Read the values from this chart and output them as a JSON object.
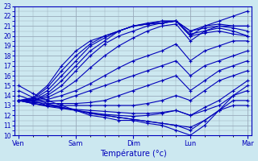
{
  "xlabel": "Température (°c)",
  "background_color": "#cce8f0",
  "line_color": "#0000bb",
  "grid_color": "#99aabb",
  "ylim": [
    10,
    23
  ],
  "yticks": [
    10,
    11,
    12,
    13,
    14,
    15,
    16,
    17,
    18,
    19,
    20,
    21,
    22,
    23
  ],
  "day_labels": [
    "Ven",
    "Sam",
    "Dim",
    "Lun",
    "Mar"
  ],
  "day_positions": [
    0,
    4,
    8,
    12,
    16
  ],
  "forecasts": [
    [
      15.0,
      14.2,
      13.5,
      13.0,
      12.5,
      12.0,
      11.8,
      11.5,
      11.5,
      11.2,
      11.0,
      10.5,
      10.0,
      11.0,
      12.5,
      14.0,
      15.0
    ],
    [
      14.5,
      13.8,
      13.2,
      12.8,
      12.5,
      12.2,
      12.0,
      11.8,
      11.6,
      11.4,
      11.2,
      11.0,
      10.5,
      11.5,
      12.5,
      13.5,
      13.5
    ],
    [
      14.0,
      13.5,
      13.0,
      12.8,
      12.5,
      12.2,
      12.0,
      11.8,
      11.6,
      11.4,
      11.2,
      11.0,
      10.8,
      11.5,
      12.5,
      13.0,
      13.0
    ],
    [
      13.5,
      13.2,
      12.9,
      12.7,
      12.5,
      12.3,
      12.1,
      12.0,
      11.9,
      12.0,
      12.2,
      12.5,
      12.0,
      12.5,
      13.0,
      14.0,
      14.5
    ],
    [
      13.5,
      13.2,
      13.0,
      12.8,
      12.6,
      12.5,
      12.4,
      12.3,
      12.2,
      12.2,
      12.3,
      12.5,
      12.0,
      12.8,
      13.5,
      14.5,
      15.5
    ],
    [
      13.5,
      13.2,
      13.0,
      13.0,
      13.0,
      13.0,
      13.0,
      13.0,
      13.0,
      13.2,
      13.5,
      14.0,
      13.5,
      14.5,
      15.5,
      16.0,
      16.5
    ],
    [
      13.5,
      13.3,
      13.2,
      13.2,
      13.2,
      13.3,
      13.5,
      14.0,
      14.5,
      15.0,
      15.5,
      16.0,
      14.5,
      15.5,
      16.5,
      17.0,
      17.5
    ],
    [
      13.5,
      13.4,
      13.4,
      13.5,
      14.0,
      14.5,
      15.0,
      15.5,
      16.0,
      16.5,
      17.0,
      17.5,
      16.0,
      17.0,
      17.5,
      18.0,
      18.5
    ],
    [
      13.5,
      13.5,
      13.6,
      14.0,
      14.5,
      15.2,
      16.0,
      16.8,
      17.5,
      18.0,
      18.5,
      19.2,
      17.5,
      18.5,
      19.0,
      19.5,
      19.5
    ],
    [
      13.5,
      13.5,
      13.8,
      14.5,
      15.5,
      16.8,
      18.0,
      19.0,
      19.8,
      20.5,
      21.0,
      21.2,
      19.5,
      20.5,
      21.0,
      21.0,
      21.0
    ],
    [
      13.5,
      13.5,
      14.0,
      15.0,
      16.5,
      18.0,
      19.2,
      20.0,
      20.5,
      21.0,
      21.3,
      21.5,
      20.0,
      21.0,
      21.5,
      22.0,
      22.5
    ],
    [
      13.5,
      13.5,
      14.2,
      15.5,
      17.0,
      18.5,
      19.5,
      20.5,
      21.0,
      21.3,
      21.5,
      21.5,
      20.5,
      21.0,
      21.2,
      21.0,
      21.0
    ],
    [
      13.5,
      13.6,
      14.5,
      16.0,
      17.5,
      19.0,
      19.8,
      20.5,
      21.0,
      21.2,
      21.5,
      21.5,
      20.5,
      20.8,
      21.0,
      20.8,
      20.5
    ],
    [
      13.5,
      13.7,
      14.8,
      16.5,
      18.0,
      19.2,
      20.0,
      20.5,
      21.0,
      21.2,
      21.3,
      21.5,
      20.2,
      20.5,
      20.8,
      20.5,
      20.0
    ],
    [
      13.5,
      13.8,
      15.0,
      17.0,
      18.5,
      19.5,
      20.0,
      20.5,
      21.0,
      21.2,
      21.3,
      21.5,
      20.0,
      20.3,
      20.5,
      20.2,
      20.0
    ]
  ],
  "figsize": [
    3.2,
    2.0
  ],
  "dpi": 100
}
